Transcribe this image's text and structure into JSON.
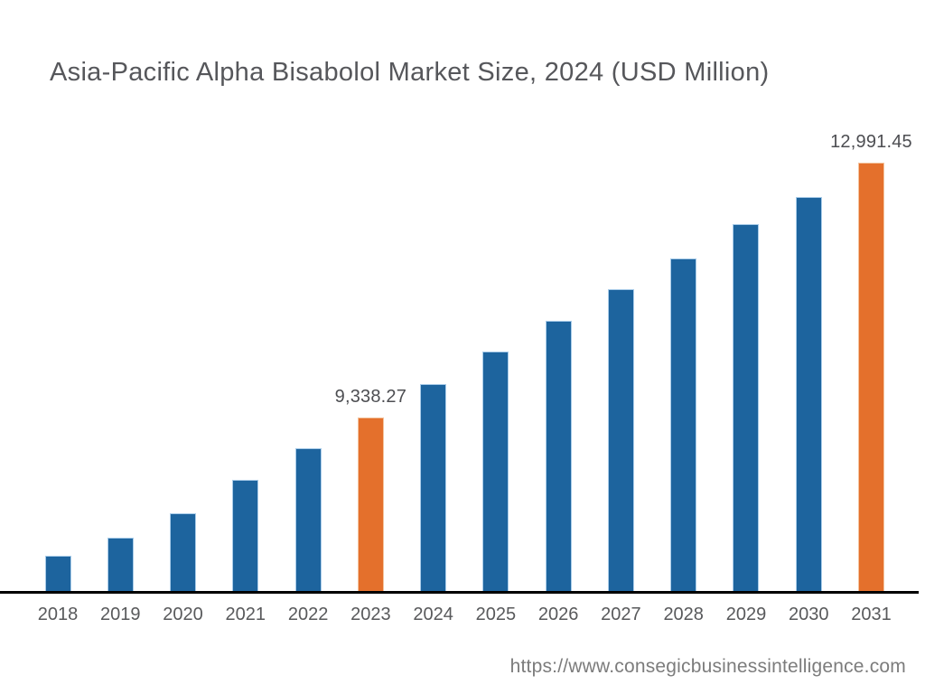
{
  "chart_data": {
    "type": "bar",
    "title": "Asia-Pacific Alpha Bisabolol Market Size, 2024 (USD Million)",
    "categories": [
      "2018",
      "2019",
      "2020",
      "2021",
      "2022",
      "2023",
      "2024",
      "2025",
      "2026",
      "2027",
      "2028",
      "2029",
      "2030",
      "2031"
    ],
    "values": [
      7360,
      7620,
      7960,
      8440,
      8900,
      9338.27,
      9810,
      10280,
      10720,
      11180,
      11610,
      12110,
      12500,
      12991.45
    ],
    "data_labels": {
      "2023": "9,338.27",
      "2031": "12,991.45"
    },
    "highlighted_categories": [
      "2023",
      "2031"
    ],
    "bar_color": "#1D649E",
    "highlight_color": "#E4702C",
    "bar_edge_color": "#A9CCE9",
    "highlight_edge_color": "#F4C49E",
    "xlabel": "",
    "ylabel": "",
    "ylim": [
      6812,
      13350
    ],
    "grid": false,
    "legend": false
  },
  "footer": {
    "url": "https://www.consegicbusinessintelligence.com"
  }
}
